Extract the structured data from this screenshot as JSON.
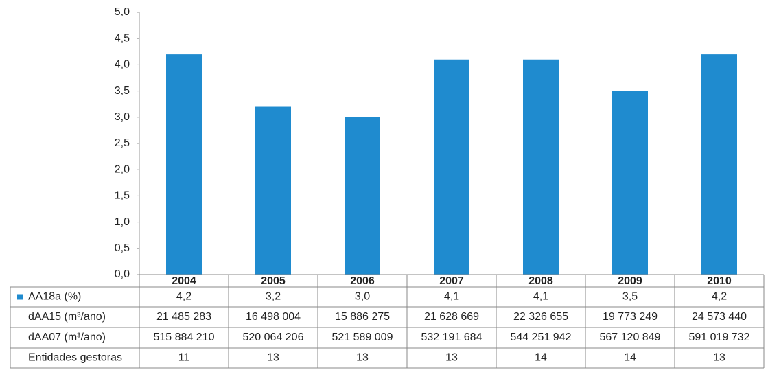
{
  "chart_data": {
    "type": "bar",
    "categories": [
      "2004",
      "2005",
      "2006",
      "2007",
      "2008",
      "2009",
      "2010"
    ],
    "series": [
      {
        "name": "AA18a (%)",
        "color": "#1f8bcf",
        "values": [
          4.2,
          3.2,
          3.0,
          4.1,
          4.1,
          3.5,
          4.2
        ],
        "value_labels": [
          "4,2",
          "3,2",
          "3,0",
          "4,1",
          "4,1",
          "3,5",
          "4,2"
        ]
      }
    ],
    "ylim": [
      0,
      5
    ],
    "yticks": [
      {
        "value": 0,
        "label": "0,0"
      },
      {
        "value": 0.5,
        "label": "0,5"
      },
      {
        "value": 1,
        "label": "1,0"
      },
      {
        "value": 1.5,
        "label": "1,5"
      },
      {
        "value": 2,
        "label": "2,0"
      },
      {
        "value": 2.5,
        "label": "2,5"
      },
      {
        "value": 3,
        "label": "3,0"
      },
      {
        "value": 3.5,
        "label": "3,5"
      },
      {
        "value": 4,
        "label": "4,0"
      },
      {
        "value": 4.5,
        "label": "4,5"
      },
      {
        "value": 5,
        "label": "5,0"
      }
    ],
    "grid": false,
    "data_table": [
      {
        "label": "dAA15 (m³/ano)",
        "cells": [
          "21 485 283",
          "16 498 004",
          "15 886 275",
          "21 628 669",
          "22 326 655",
          "19 773 249",
          "24 573 440"
        ]
      },
      {
        "label": "dAA07 (m³/ano)",
        "cells": [
          "515 884 210",
          "520 064 206",
          "521 589 009",
          "532 191 684",
          "544 251 942",
          "567 120 849",
          "591 019 732"
        ]
      },
      {
        "label": "Entidades gestoras",
        "cells": [
          "11",
          "13",
          "13",
          "13",
          "14",
          "14",
          "13"
        ]
      }
    ]
  }
}
